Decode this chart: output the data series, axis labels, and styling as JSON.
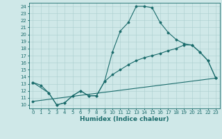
{
  "title": "",
  "xlabel": "Humidex (Indice chaleur)",
  "xlim": [
    -0.5,
    23.5
  ],
  "ylim": [
    9.5,
    24.5
  ],
  "xticks": [
    0,
    1,
    2,
    3,
    4,
    5,
    6,
    7,
    8,
    9,
    10,
    11,
    12,
    13,
    14,
    15,
    16,
    17,
    18,
    19,
    20,
    21,
    22,
    23
  ],
  "yticks": [
    10,
    11,
    12,
    13,
    14,
    15,
    16,
    17,
    18,
    19,
    20,
    21,
    22,
    23,
    24
  ],
  "background_color": "#cfe8e8",
  "grid_color": "#aacece",
  "line_color": "#1a6b6b",
  "curve1_x": [
    0,
    1,
    2,
    3,
    4,
    5,
    6,
    7,
    8,
    9,
    10,
    11,
    12,
    13,
    14,
    15,
    16,
    17,
    18,
    19,
    20,
    21,
    22,
    23
  ],
  "curve1_y": [
    13.2,
    12.8,
    11.7,
    10.0,
    10.3,
    11.3,
    12.0,
    11.3,
    11.3,
    13.3,
    17.5,
    20.5,
    21.7,
    24.0,
    24.0,
    23.8,
    21.7,
    20.3,
    19.3,
    18.7,
    18.5,
    17.5,
    16.3,
    13.8
  ],
  "curve2_x": [
    0,
    2,
    3,
    4,
    5,
    6,
    7,
    8,
    9,
    10,
    11,
    12,
    13,
    14,
    15,
    16,
    17,
    18,
    19,
    20,
    21,
    22,
    23
  ],
  "curve2_y": [
    13.2,
    11.7,
    10.0,
    10.3,
    11.3,
    12.0,
    11.3,
    11.3,
    13.3,
    14.3,
    15.0,
    15.7,
    16.3,
    16.7,
    17.0,
    17.3,
    17.7,
    18.0,
    18.5,
    18.5,
    17.5,
    16.3,
    13.8
  ],
  "curve3_x": [
    0,
    23
  ],
  "curve3_y": [
    10.5,
    13.8
  ],
  "figsize": [
    3.2,
    2.0
  ],
  "dpi": 100,
  "tick_fontsize": 5.0,
  "label_fontsize": 6.5
}
